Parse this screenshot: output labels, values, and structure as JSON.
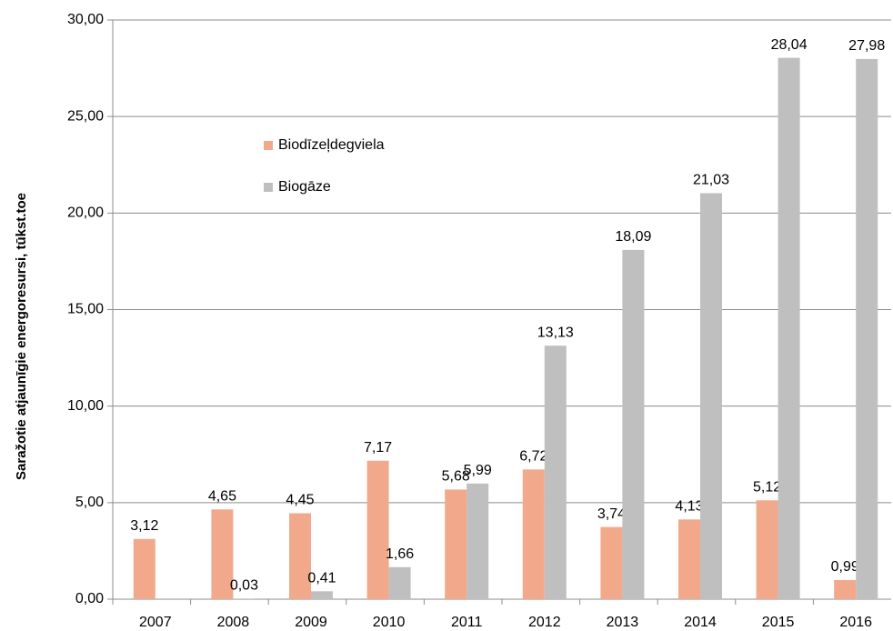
{
  "chart_data": {
    "type": "bar",
    "y_label": "Saražotie atjaunīgie energoresursi, tūkst.toe",
    "categories": [
      "2007",
      "2008",
      "2009",
      "2010",
      "2011",
      "2012",
      "2013",
      "2014",
      "2015",
      "2016"
    ],
    "series": [
      {
        "name": "Biodīzeļdegviela",
        "color": "#f2a98b",
        "values": [
          3.12,
          4.65,
          4.45,
          7.17,
          5.68,
          6.72,
          3.74,
          4.13,
          5.12,
          0.99
        ],
        "value_labels": [
          "3,12",
          "4,65",
          "4,45",
          "7,17",
          "5,68",
          "6,72",
          "3,74",
          "4,13",
          "5,12",
          "0,99"
        ]
      },
      {
        "name": "Biogāze",
        "color": "#bfbfbf",
        "values": [
          null,
          0.03,
          0.41,
          1.66,
          5.99,
          13.13,
          18.09,
          21.03,
          28.04,
          27.98
        ],
        "value_labels": [
          null,
          "0,03",
          "0,41",
          "1,66",
          "5,99",
          "13,13",
          "18,09",
          "21,03",
          "28,04",
          "27,98"
        ]
      }
    ],
    "ylim": [
      0,
      30
    ],
    "yticks": [
      {
        "value": 0,
        "label": "0,00"
      },
      {
        "value": 5,
        "label": "5,00"
      },
      {
        "value": 10,
        "label": "10,00"
      },
      {
        "value": 15,
        "label": "15,00"
      },
      {
        "value": 20,
        "label": "20,00"
      },
      {
        "value": 25,
        "label": "25,00"
      },
      {
        "value": 30,
        "label": "30,00"
      }
    ],
    "grid": true,
    "legend": "upper-left"
  }
}
